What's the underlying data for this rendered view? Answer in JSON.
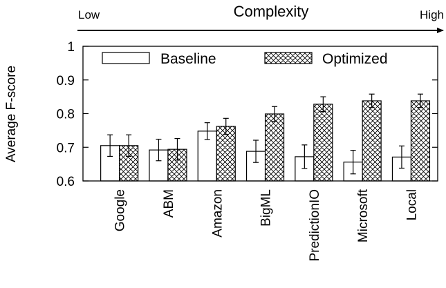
{
  "chart_data": {
    "type": "bar",
    "header": {
      "title": "Complexity",
      "left_label": "Low",
      "right_label": "High"
    },
    "categories": [
      "Google",
      "ABM",
      "Amazon",
      "BigML",
      "PredictionIO",
      "Microsoft",
      "Local"
    ],
    "series": [
      {
        "name": "Baseline",
        "pattern": "none",
        "values": [
          0.705,
          0.692,
          0.748,
          0.688,
          0.672,
          0.656,
          0.671
        ],
        "errors": [
          0.032,
          0.032,
          0.025,
          0.033,
          0.035,
          0.035,
          0.033
        ]
      },
      {
        "name": "Optimized",
        "pattern": "crosshatch",
        "values": [
          0.705,
          0.694,
          0.762,
          0.799,
          0.828,
          0.838,
          0.838
        ],
        "errors": [
          0.032,
          0.032,
          0.024,
          0.022,
          0.022,
          0.02,
          0.02
        ]
      }
    ],
    "ylabel": "Average F-score",
    "xlabel": "",
    "ylim": [
      0.6,
      1.0
    ],
    "yticks": [
      "0.6",
      "0.7",
      "0.8",
      "0.9",
      "1"
    ],
    "legend_position": "top",
    "grid": false
  }
}
